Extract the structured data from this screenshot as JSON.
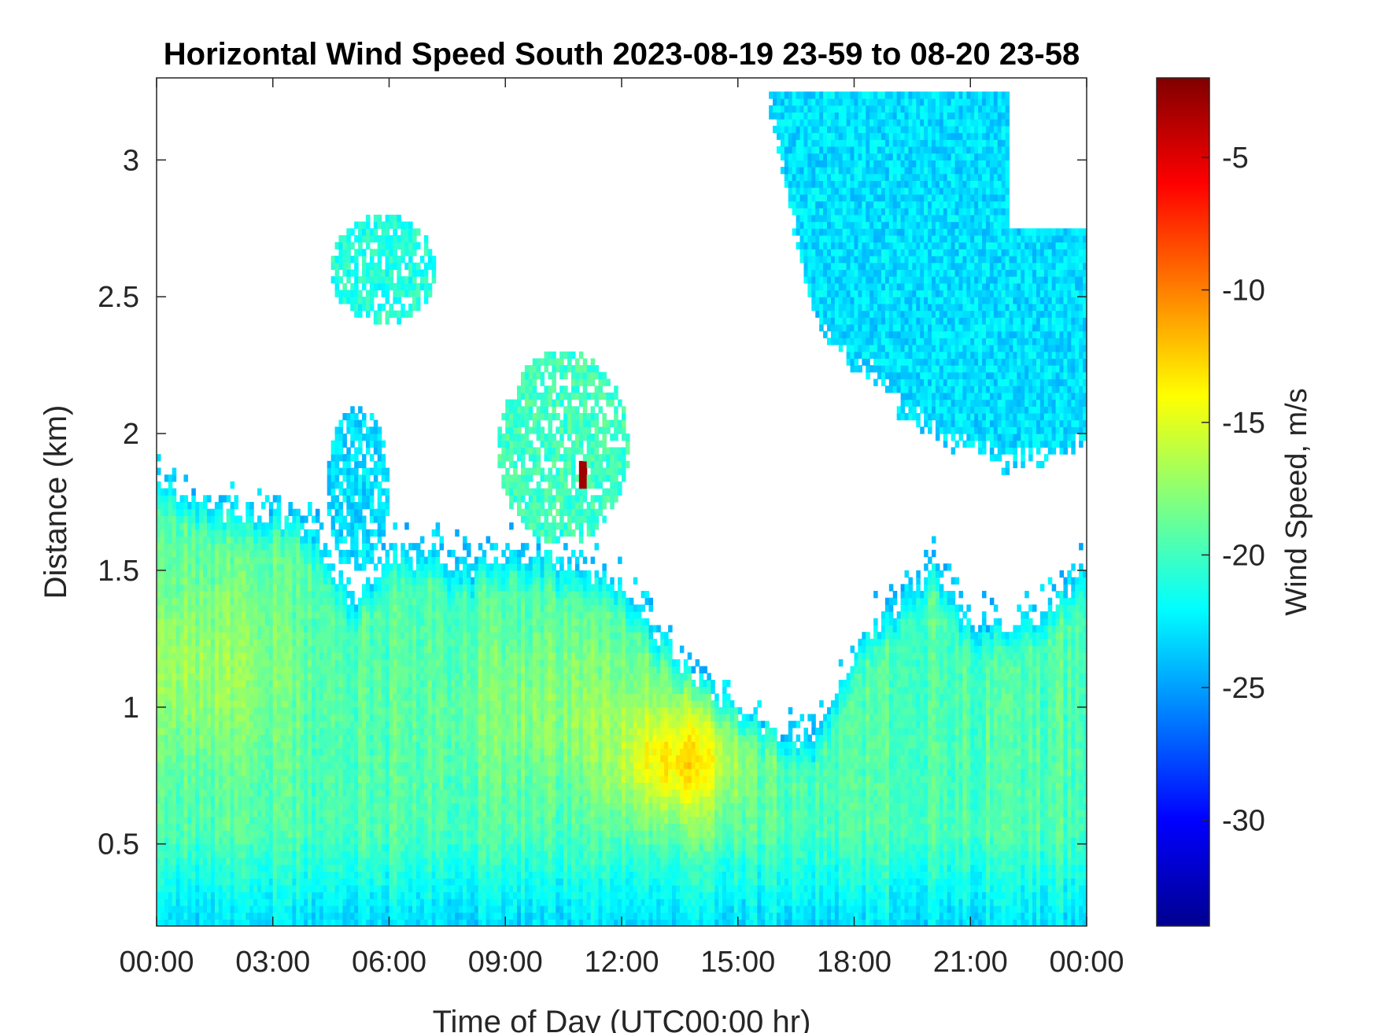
{
  "chart_data": {
    "type": "heatmap",
    "title": "Horizontal Wind Speed South 2023-08-19 23-59 to 08-20 23-58",
    "xlabel": "Time of Day (UTC00:00 hr)",
    "ylabel": "Distance (km)",
    "colorbar_label": "Wind Speed, m/s",
    "x_unit": "hours",
    "xlim": [
      0,
      24
    ],
    "ylim": [
      0.2,
      3.3
    ],
    "x_ticks": [
      0,
      3,
      6,
      9,
      12,
      15,
      18,
      21,
      24
    ],
    "x_tick_labels": [
      "00:00",
      "03:00",
      "06:00",
      "09:00",
      "12:00",
      "15:00",
      "18:00",
      "21:00",
      "00:00"
    ],
    "y_ticks": [
      0.5,
      1,
      1.5,
      2,
      2.5,
      3
    ],
    "y_tick_labels": [
      "0.5",
      "1",
      "1.5",
      "2",
      "2.5",
      "3"
    ],
    "clim": [
      -34,
      -2
    ],
    "colorbar_ticks": [
      -5,
      -10,
      -15,
      -20,
      -25,
      -30
    ],
    "colorbar_tick_labels": [
      "-5",
      "-10",
      "-15",
      "-20",
      "-25",
      "-30"
    ],
    "colormap": "jet",
    "grid": false,
    "lower_layer_top_km": {
      "hours": [
        0,
        1,
        2,
        3,
        4,
        4.8,
        5,
        5.5,
        6,
        7,
        8,
        9,
        10,
        11,
        12,
        13,
        14,
        14.5,
        15,
        15.5,
        16,
        16.5,
        17,
        17.5,
        18,
        19,
        20,
        21,
        22,
        23,
        24
      ],
      "values": [
        1.85,
        1.75,
        1.7,
        1.7,
        1.65,
        1.45,
        1.35,
        1.45,
        1.55,
        1.55,
        1.5,
        1.55,
        1.55,
        1.5,
        1.45,
        1.25,
        1.1,
        1.05,
        1.0,
        0.95,
        0.9,
        0.85,
        0.9,
        1.0,
        1.2,
        1.35,
        1.5,
        1.3,
        1.3,
        1.35,
        1.5
      ]
    },
    "regions": [
      {
        "name": "upper-right layer",
        "hours": [
          15.8,
          24
        ],
        "km": [
          1.7,
          3.3
        ],
        "wind_speed": -23
      },
      {
        "name": "cloud 1",
        "hours": [
          4.5,
          7.2
        ],
        "km": [
          2.4,
          2.8
        ],
        "wind_speed": -21
      },
      {
        "name": "cloud 2",
        "hours": [
          8.8,
          12.2
        ],
        "km": [
          1.6,
          2.3
        ],
        "wind_speed": -20
      },
      {
        "name": "cloud 3",
        "hours": [
          4.4,
          6.0
        ],
        "km": [
          1.5,
          2.1
        ],
        "wind_speed": -23
      }
    ],
    "hotspots": [
      {
        "hours": 13.5,
        "km": 0.8,
        "wind_speed": -13
      },
      {
        "hours": 1.0,
        "km": 1.15,
        "wind_speed": -17
      },
      {
        "hours": 11.0,
        "km": 1.85,
        "wind_speed": -3
      }
    ]
  }
}
